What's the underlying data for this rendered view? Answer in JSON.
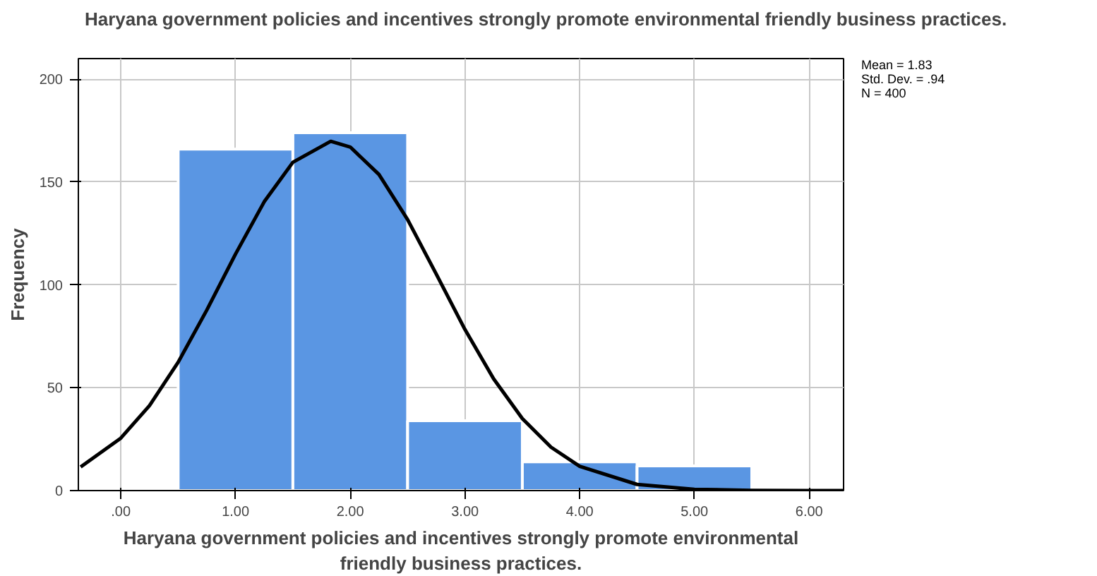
{
  "chart_data": {
    "type": "histogram",
    "title": "Haryana government policies and incentives strongly promote environmental friendly business practices.",
    "xlabel": "Haryana government policies and incentives strongly promote environmental friendly business practices.",
    "ylabel": "Frequency",
    "bins": [
      0.5,
      1.5,
      2.5,
      3.5,
      4.5,
      5.5
    ],
    "values": [
      166,
      174,
      34,
      14,
      12
    ],
    "color": "#5a96e3",
    "series": [
      {
        "type": "line",
        "color": "#000000",
        "x": [
          -0.35,
          0,
          0.25,
          0.5,
          0.75,
          1.0,
          1.25,
          1.5,
          1.83,
          2.0,
          2.25,
          2.5,
          2.75,
          3.0,
          3.25,
          3.5,
          3.75,
          4.0,
          4.5,
          5.0,
          5.5,
          6.0,
          6.3
        ],
        "values": [
          11.5,
          25.5,
          41.3,
          62.4,
          87.8,
          115.0,
          140.4,
          159.6,
          169.8,
          167.0,
          153.7,
          131.7,
          105.2,
          78.3,
          54.3,
          35.0,
          21.1,
          11.8,
          3.0,
          0.6,
          0.1,
          0,
          0
        ]
      }
    ],
    "xlim": [
      -0.37,
      6.3
    ],
    "ylim": [
      0,
      210
    ],
    "xticks": [
      {
        "value": 0,
        "label": ".00"
      },
      {
        "value": 1,
        "label": "1.00"
      },
      {
        "value": 2,
        "label": "2.00"
      },
      {
        "value": 3,
        "label": "3.00"
      },
      {
        "value": 4,
        "label": "4.00"
      },
      {
        "value": 5,
        "label": "5.00"
      },
      {
        "value": 6,
        "label": "6.00"
      }
    ],
    "yticks": [
      0,
      50,
      100,
      150,
      200
    ],
    "grid": true,
    "marker": "none",
    "line_style": "solid",
    "annotations": [
      "Mean = 1.83",
      "Std. Dev. = .94",
      "N = 400"
    ]
  }
}
